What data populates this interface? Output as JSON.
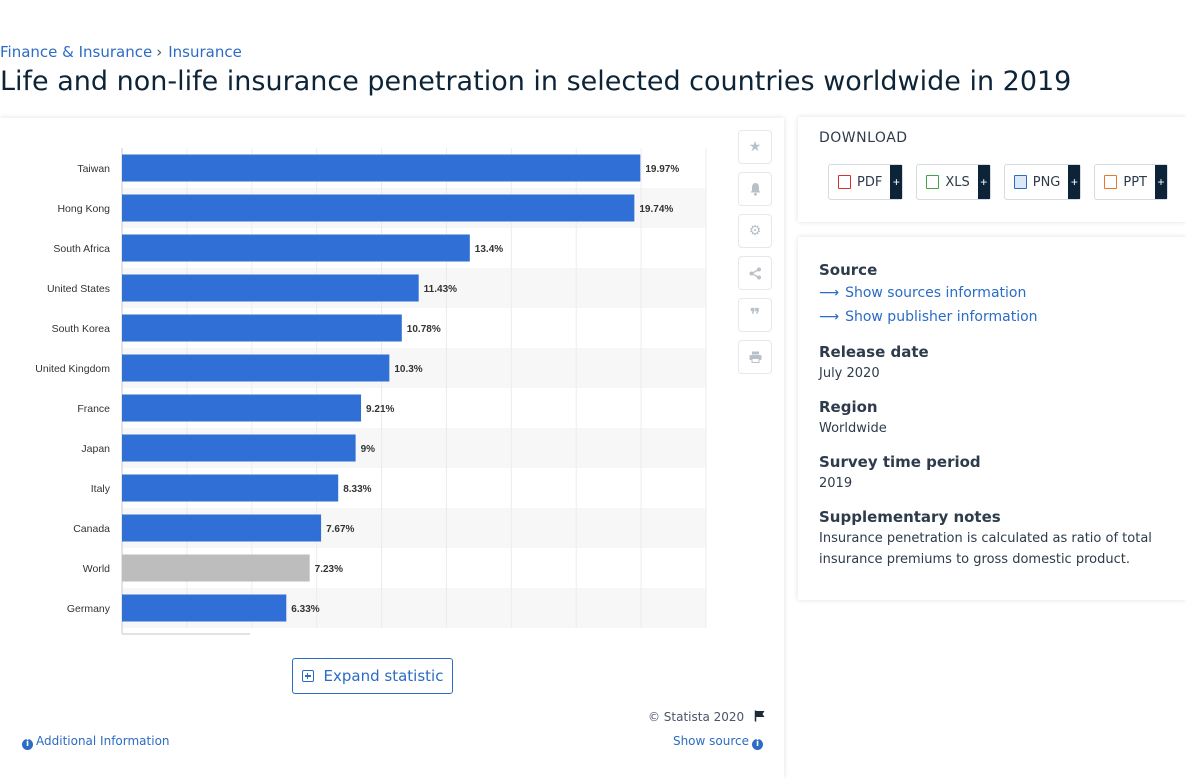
{
  "breadcrumb": {
    "item1": "Finance & Insurance",
    "separator": "›",
    "item2": "Insurance"
  },
  "title": "Life and non-life insurance penetration in selected countries worldwide in 2019",
  "toolbar": {
    "icons": [
      "star-icon",
      "bell-icon",
      "gear-icon",
      "share-icon",
      "quote-icon",
      "print-icon"
    ]
  },
  "expand_label": "Expand statistic",
  "copyright": "© Statista 2020",
  "additional_info": "Additional Information",
  "show_source": "Show source",
  "download": {
    "title": "DOWNLOAD",
    "buttons": [
      {
        "label": "PDF",
        "color": "#d9322b"
      },
      {
        "label": "XLS",
        "color": "#39a845"
      },
      {
        "label": "PNG",
        "color": "#2b6cc4"
      },
      {
        "label": "PPT",
        "color": "#e8782a"
      }
    ],
    "plus": "+"
  },
  "meta": {
    "source_heading": "Source",
    "show_sources": "Show sources information",
    "show_publisher": "Show publisher information",
    "release_heading": "Release date",
    "release_value": "July 2020",
    "region_heading": "Region",
    "region_value": "Worldwide",
    "survey_heading": "Survey time period",
    "survey_value": "2019",
    "notes_heading": "Supplementary notes",
    "notes_value": "Insurance penetration is calculated as ratio of total insurance premiums to gross domestic product."
  },
  "chart_data": {
    "type": "bar",
    "orientation": "horizontal",
    "categories": [
      "Taiwan",
      "Hong Kong",
      "South Africa",
      "United States",
      "South Korea",
      "United Kingdom",
      "France",
      "Japan",
      "Italy",
      "Canada",
      "World",
      "Germany"
    ],
    "values": [
      19.97,
      19.74,
      13.4,
      11.43,
      10.78,
      10.3,
      9.21,
      9,
      8.33,
      7.67,
      7.23,
      6.33
    ],
    "data_labels": [
      "19.97%",
      "19.74%",
      "13.4%",
      "11.43%",
      "10.78%",
      "10.3%",
      "9.21%",
      "9%",
      "8.33%",
      "7.67%",
      "7.23%",
      "6.33%"
    ],
    "bar_color": "#2f6fd6",
    "highlight_color": "#bdbdbd",
    "highlight_category": "World",
    "xlim": [
      0,
      22.5
    ],
    "grid": true
  }
}
